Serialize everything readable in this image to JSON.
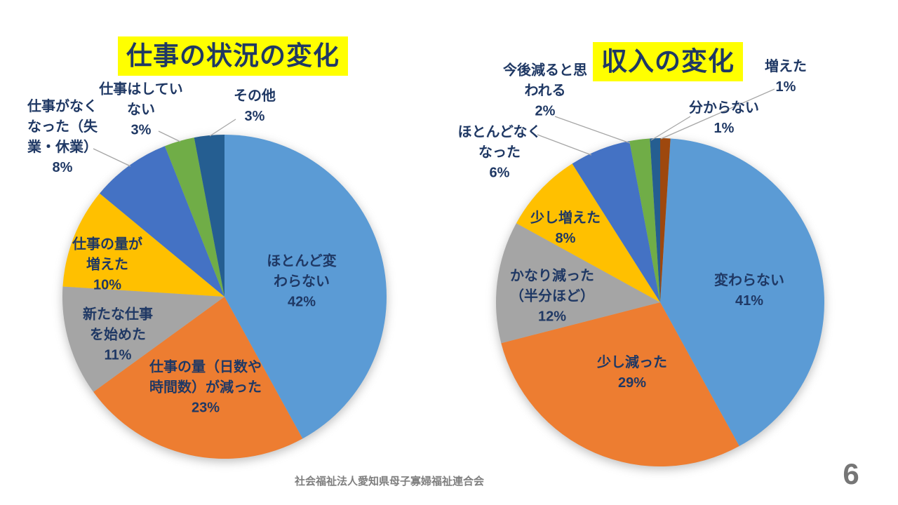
{
  "slide": {
    "footer_text": "社会福祉法人愛知県母子寡婦福祉連合会",
    "page_number": "6",
    "background_color": "#FFFFFF",
    "label_text_color": "#1F3864",
    "title_highlight_color": "#FFFF00",
    "footer_text_color": "#7F7F7F",
    "leader_line_color": "#A6A6A6"
  },
  "chart_data": [
    {
      "type": "pie",
      "title": "仕事の状況の変化",
      "legend_position": "none",
      "label_style": "category name and percent; small slices labeled outside with leader lines",
      "slices": [
        {
          "label": "ほとんど変わらない",
          "pct": 42,
          "color": "#5B9BD5",
          "placement": "inside",
          "label_lines": [
            "ほとんど変",
            "わらない"
          ],
          "pct_label": "42%"
        },
        {
          "label": "仕事の量（日数や時間数）が減った",
          "pct": 23,
          "color": "#ED7D31",
          "placement": "inside",
          "label_lines": [
            "仕事の量（日数や",
            "時間数）が減った"
          ],
          "pct_label": "23%"
        },
        {
          "label": "新たな仕事を始めた",
          "pct": 11,
          "color": "#A5A5A5",
          "placement": "inside",
          "label_lines": [
            "新たな仕事",
            "を始めた"
          ],
          "pct_label": "11%"
        },
        {
          "label": "仕事の量が増えた",
          "pct": 10,
          "color": "#FFC000",
          "placement": "inside",
          "label_lines": [
            "仕事の量が",
            "増えた"
          ],
          "pct_label": "10%"
        },
        {
          "label": "仕事がなくなった（失業・休業）",
          "pct": 8,
          "color": "#4472C4",
          "placement": "outside",
          "label_lines": [
            "仕事がなく",
            "なった（失",
            "業・休業）"
          ],
          "pct_label": "8%"
        },
        {
          "label": "仕事はしていない",
          "pct": 3,
          "color": "#70AD47",
          "placement": "outside",
          "label_lines": [
            "仕事はしてい",
            "ない"
          ],
          "pct_label": "3%"
        },
        {
          "label": "その他",
          "pct": 3,
          "color": "#255E91",
          "placement": "outside",
          "label_lines": [
            "その他"
          ],
          "pct_label": "3%"
        }
      ]
    },
    {
      "type": "pie",
      "title": "収入の変化",
      "legend_position": "none",
      "label_style": "category name and percent; small slices labeled outside with leader lines",
      "slices": [
        {
          "label": "変わらない",
          "pct": 41,
          "color": "#5B9BD5",
          "placement": "inside",
          "label_lines": [
            "変わらない"
          ],
          "pct_label": "41%"
        },
        {
          "label": "少し減った",
          "pct": 29,
          "color": "#ED7D31",
          "placement": "inside",
          "label_lines": [
            "少し減った"
          ],
          "pct_label": "29%"
        },
        {
          "label": "かなり減った（半分ほど）",
          "pct": 12,
          "color": "#A5A5A5",
          "placement": "inside",
          "label_lines": [
            "かなり減った",
            "（半分ほど）"
          ],
          "pct_label": "12%"
        },
        {
          "label": "少し増えた",
          "pct": 8,
          "color": "#FFC000",
          "placement": "inside",
          "label_lines": [
            "少し増えた"
          ],
          "pct_label": "8%"
        },
        {
          "label": "ほとんどなくなった",
          "pct": 6,
          "color": "#4472C4",
          "placement": "outside",
          "label_lines": [
            "ほとんどなく",
            "なった"
          ],
          "pct_label": "6%"
        },
        {
          "label": "今後減ると思われる",
          "pct": 2,
          "color": "#70AD47",
          "placement": "outside",
          "label_lines": [
            "今後減ると思",
            "われる"
          ],
          "pct_label": "2%"
        },
        {
          "label": "分からない",
          "pct": 1,
          "color": "#255E91",
          "placement": "outside",
          "label_lines": [
            "分からない"
          ],
          "pct_label": "1%"
        },
        {
          "label": "増えた",
          "pct": 1,
          "color": "#9E480E",
          "placement": "outside",
          "label_lines": [
            "増えた"
          ],
          "pct_label": "1%"
        }
      ]
    }
  ]
}
